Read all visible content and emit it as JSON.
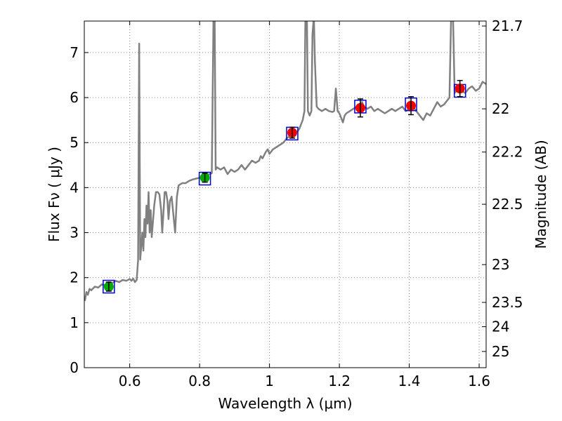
{
  "chart_data": {
    "type": "scatter",
    "xlabel": "Wavelength  λ (μm)",
    "ylabel": "Flux  Fν  ( μJy )",
    "y2label": "Magnitude (AB)",
    "xlim": [
      0.47,
      1.62
    ],
    "ylim": [
      0,
      7.7
    ],
    "grid": true,
    "x_ticks": [
      0.6,
      0.8,
      1.0,
      1.2,
      1.4,
      1.6
    ],
    "x_tick_labels": [
      "0.6",
      "0.8",
      "1",
      "1.2",
      "1.4",
      "1.6"
    ],
    "y_ticks": [
      0,
      1,
      2,
      3,
      4,
      5,
      6,
      7
    ],
    "y_tick_labels": [
      "0",
      "1",
      "2",
      "3",
      "4",
      "5",
      "6",
      "7"
    ],
    "y2_ticks": [
      {
        "label": "21.7",
        "flux": 7.59
      },
      {
        "label": "22",
        "flux": 5.75
      },
      {
        "label": "22.2",
        "flux": 4.79
      },
      {
        "label": "22.5",
        "flux": 3.63
      },
      {
        "label": "23",
        "flux": 2.29
      },
      {
        "label": "23.5",
        "flux": 1.45
      },
      {
        "label": "24",
        "flux": 0.91
      },
      {
        "label": "25",
        "flux": 0.36
      }
    ],
    "colors": {
      "spectrum": "#808080",
      "model_box": "#0000cc",
      "point_green": "#00aa00",
      "point_red": "#ee0000",
      "grid": "#888888"
    },
    "spectrum": [
      [
        0.47,
        1.55
      ],
      [
        0.472,
        1.5
      ],
      [
        0.476,
        1.68
      ],
      [
        0.48,
        1.62
      ],
      [
        0.485,
        1.75
      ],
      [
        0.49,
        1.72
      ],
      [
        0.5,
        1.8
      ],
      [
        0.51,
        1.78
      ],
      [
        0.52,
        1.85
      ],
      [
        0.53,
        1.83
      ],
      [
        0.54,
        1.9
      ],
      [
        0.55,
        1.88
      ],
      [
        0.56,
        1.93
      ],
      [
        0.57,
        1.9
      ],
      [
        0.58,
        1.95
      ],
      [
        0.59,
        1.93
      ],
      [
        0.6,
        1.97
      ],
      [
        0.605,
        1.93
      ],
      [
        0.61,
        1.98
      ],
      [
        0.615,
        1.9
      ],
      [
        0.62,
        1.95
      ],
      [
        0.624,
        2.4
      ],
      [
        0.627,
        7.2
      ],
      [
        0.63,
        2.4
      ],
      [
        0.633,
        2.7
      ],
      [
        0.636,
        3.0
      ],
      [
        0.639,
        2.6
      ],
      [
        0.642,
        3.3
      ],
      [
        0.645,
        2.9
      ],
      [
        0.648,
        3.6
      ],
      [
        0.651,
        3.2
      ],
      [
        0.654,
        3.9
      ],
      [
        0.657,
        3.0
      ],
      [
        0.66,
        3.5
      ],
      [
        0.663,
        2.9
      ],
      [
        0.666,
        3.2
      ],
      [
        0.67,
        3.6
      ],
      [
        0.675,
        3.9
      ],
      [
        0.68,
        3.9
      ],
      [
        0.685,
        3.85
      ],
      [
        0.69,
        3.5
      ],
      [
        0.693,
        3.0
      ],
      [
        0.697,
        3.5
      ],
      [
        0.7,
        3.9
      ],
      [
        0.704,
        3.9
      ],
      [
        0.708,
        3.7
      ],
      [
        0.711,
        3.3
      ],
      [
        0.715,
        3.7
      ],
      [
        0.72,
        3.8
      ],
      [
        0.725,
        3.4
      ],
      [
        0.73,
        3.0
      ],
      [
        0.735,
        3.8
      ],
      [
        0.74,
        4.05
      ],
      [
        0.75,
        4.1
      ],
      [
        0.76,
        4.1
      ],
      [
        0.77,
        4.15
      ],
      [
        0.78,
        4.18
      ],
      [
        0.79,
        4.2
      ],
      [
        0.8,
        4.22
      ],
      [
        0.81,
        4.25
      ],
      [
        0.82,
        4.28
      ],
      [
        0.83,
        4.3
      ],
      [
        0.835,
        4.32
      ],
      [
        0.84,
        7.9
      ],
      [
        0.843,
        7.9
      ],
      [
        0.846,
        4.4
      ],
      [
        0.85,
        4.45
      ],
      [
        0.86,
        4.4
      ],
      [
        0.87,
        4.45
      ],
      [
        0.88,
        4.3
      ],
      [
        0.89,
        4.4
      ],
      [
        0.9,
        4.35
      ],
      [
        0.91,
        4.4
      ],
      [
        0.92,
        4.5
      ],
      [
        0.93,
        4.4
      ],
      [
        0.94,
        4.5
      ],
      [
        0.95,
        4.6
      ],
      [
        0.96,
        4.55
      ],
      [
        0.97,
        4.6
      ],
      [
        0.975,
        4.7
      ],
      [
        0.98,
        4.65
      ],
      [
        0.99,
        4.8
      ],
      [
        0.995,
        4.85
      ],
      [
        1.0,
        4.75
      ],
      [
        1.01,
        4.85
      ],
      [
        1.02,
        4.9
      ],
      [
        1.03,
        4.95
      ],
      [
        1.04,
        5.0
      ],
      [
        1.05,
        5.1
      ],
      [
        1.06,
        5.15
      ],
      [
        1.07,
        5.2
      ],
      [
        1.08,
        5.25
      ],
      [
        1.085,
        5.3
      ],
      [
        1.09,
        5.4
      ],
      [
        1.095,
        5.5
      ],
      [
        1.1,
        5.7
      ],
      [
        1.103,
        7.9
      ],
      [
        1.107,
        7.9
      ],
      [
        1.11,
        5.7
      ],
      [
        1.115,
        5.6
      ],
      [
        1.12,
        5.7
      ],
      [
        1.123,
        7.4
      ],
      [
        1.127,
        7.8
      ],
      [
        1.13,
        6.8
      ],
      [
        1.135,
        5.8
      ],
      [
        1.14,
        5.75
      ],
      [
        1.15,
        5.7
      ],
      [
        1.16,
        5.75
      ],
      [
        1.17,
        5.7
      ],
      [
        1.18,
        5.68
      ],
      [
        1.185,
        5.7
      ],
      [
        1.19,
        6.2
      ],
      [
        1.195,
        5.7
      ],
      [
        1.2,
        5.65
      ],
      [
        1.205,
        5.55
      ],
      [
        1.21,
        5.45
      ],
      [
        1.215,
        5.6
      ],
      [
        1.22,
        5.65
      ],
      [
        1.23,
        5.7
      ],
      [
        1.24,
        5.75
      ],
      [
        1.25,
        5.8
      ],
      [
        1.26,
        5.85
      ],
      [
        1.265,
        5.9
      ],
      [
        1.27,
        5.8
      ],
      [
        1.28,
        5.75
      ],
      [
        1.29,
        5.8
      ],
      [
        1.3,
        5.7
      ],
      [
        1.31,
        5.75
      ],
      [
        1.32,
        5.7
      ],
      [
        1.33,
        5.65
      ],
      [
        1.34,
        5.7
      ],
      [
        1.35,
        5.75
      ],
      [
        1.36,
        5.7
      ],
      [
        1.37,
        5.75
      ],
      [
        1.38,
        5.8
      ],
      [
        1.39,
        5.7
      ],
      [
        1.4,
        5.75
      ],
      [
        1.41,
        5.8
      ],
      [
        1.42,
        5.7
      ],
      [
        1.43,
        5.6
      ],
      [
        1.44,
        5.5
      ],
      [
        1.45,
        5.65
      ],
      [
        1.46,
        5.6
      ],
      [
        1.47,
        5.75
      ],
      [
        1.48,
        5.9
      ],
      [
        1.49,
        5.8
      ],
      [
        1.5,
        5.85
      ],
      [
        1.51,
        5.95
      ],
      [
        1.515,
        6.0
      ],
      [
        1.52,
        7.9
      ],
      [
        1.525,
        7.9
      ],
      [
        1.53,
        6.1
      ],
      [
        1.54,
        6.2
      ],
      [
        1.55,
        6.15
      ],
      [
        1.56,
        6.1
      ],
      [
        1.57,
        6.2
      ],
      [
        1.58,
        6.25
      ],
      [
        1.59,
        6.15
      ],
      [
        1.6,
        6.2
      ],
      [
        1.61,
        6.35
      ],
      [
        1.62,
        6.3
      ]
    ],
    "model_points": [
      {
        "x": 0.54,
        "y": 1.8
      },
      {
        "x": 0.815,
        "y": 4.2
      },
      {
        "x": 1.065,
        "y": 5.2
      },
      {
        "x": 1.26,
        "y": 5.8
      },
      {
        "x": 1.405,
        "y": 5.85
      },
      {
        "x": 1.545,
        "y": 6.15
      }
    ],
    "observed_points": [
      {
        "x": 0.54,
        "y": 1.8,
        "err": 0.1,
        "color": "green"
      },
      {
        "x": 0.815,
        "y": 4.22,
        "err": 0.1,
        "color": "green"
      },
      {
        "x": 1.065,
        "y": 5.22,
        "err": 0.12,
        "color": "red"
      },
      {
        "x": 1.26,
        "y": 5.77,
        "err": 0.2,
        "color": "red"
      },
      {
        "x": 1.405,
        "y": 5.82,
        "err": 0.2,
        "color": "red"
      },
      {
        "x": 1.545,
        "y": 6.2,
        "err": 0.18,
        "color": "red"
      }
    ]
  }
}
